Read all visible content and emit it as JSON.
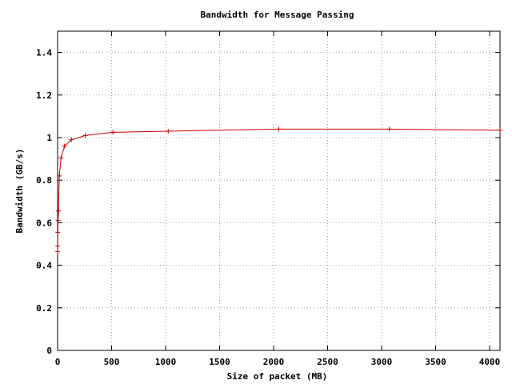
{
  "chart_data": {
    "type": "line",
    "title": "Bandwidth for Message Passing",
    "xlabel": "Size of packet (MB)",
    "ylabel": "Bandwidth (GB/s)",
    "xlim": [
      0,
      4096
    ],
    "ylim": [
      0,
      1.5
    ],
    "xticks": [
      0,
      500,
      1000,
      1500,
      2000,
      2500,
      3000,
      3500,
      4000
    ],
    "yticks": [
      0,
      0.2,
      0.4,
      0.6,
      0.8,
      1.0,
      1.2,
      1.4
    ],
    "xtick_labels": [
      "0",
      "500",
      "1000",
      "1500",
      "2000",
      "2500",
      "3000",
      "3500",
      "4000"
    ],
    "ytick_labels": [
      "0",
      "0.2",
      "0.4",
      "0.6",
      "0.8",
      "1",
      "1.2",
      "1.4"
    ],
    "grid": true,
    "legend": "none",
    "series": [
      {
        "color": "#cc0000",
        "marker": "plus",
        "x": [
          0.5,
          1,
          2,
          4,
          8,
          16,
          32,
          64,
          128,
          256,
          512,
          1024,
          2048,
          3072,
          4096
        ],
        "y": [
          0.465,
          0.49,
          0.555,
          0.61,
          0.655,
          0.82,
          0.905,
          0.96,
          0.99,
          1.01,
          1.025,
          1.03,
          1.04,
          1.04,
          1.035
        ]
      }
    ]
  }
}
